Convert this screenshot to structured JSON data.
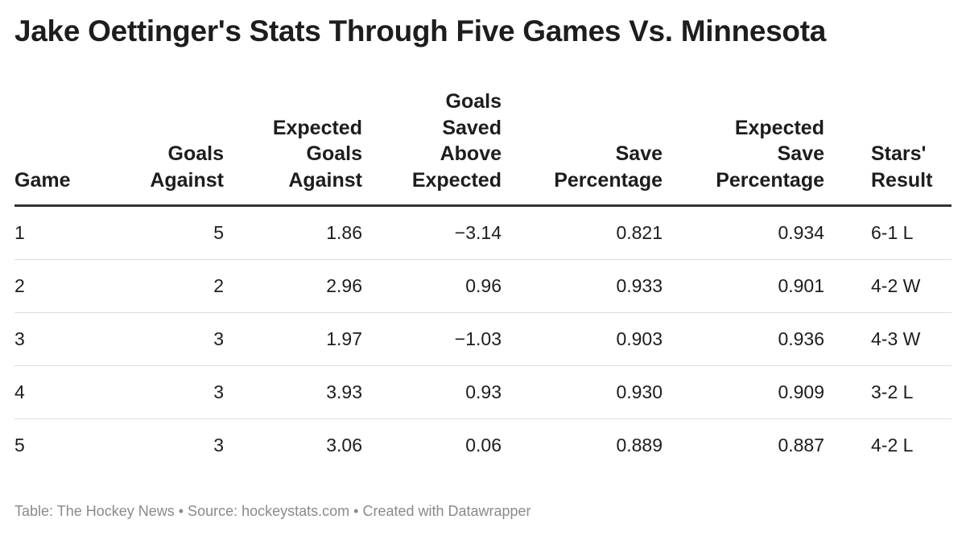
{
  "chart_data": {
    "type": "table",
    "title": "Jake Oettinger's Stats Through Five Games Vs. Minnesota",
    "columns": [
      {
        "key": "game",
        "lines": [
          "Game"
        ],
        "align": "left"
      },
      {
        "key": "goals_against",
        "lines": [
          "Goals",
          "Against"
        ],
        "align": "right"
      },
      {
        "key": "expected_goals_against",
        "lines": [
          "Expected",
          "Goals",
          "Against"
        ],
        "align": "right"
      },
      {
        "key": "gsax",
        "lines": [
          "Goals",
          "Saved",
          "Above",
          "Expected"
        ],
        "align": "right"
      },
      {
        "key": "save_pct",
        "lines": [
          "Save",
          "Percentage"
        ],
        "align": "right"
      },
      {
        "key": "expected_save_pct",
        "lines": [
          "Expected",
          "Save",
          "Percentage"
        ],
        "align": "right"
      },
      {
        "key": "result",
        "lines": [
          "Stars'",
          "Result"
        ],
        "align": "left"
      }
    ],
    "rows": [
      {
        "game": "1",
        "goals_against": "5",
        "expected_goals_against": "1.86",
        "gsax": "−3.14",
        "save_pct": "0.821",
        "expected_save_pct": "0.934",
        "result": "6-1 L"
      },
      {
        "game": "2",
        "goals_against": "2",
        "expected_goals_against": "2.96",
        "gsax": "0.96",
        "save_pct": "0.933",
        "expected_save_pct": "0.901",
        "result": "4-2 W"
      },
      {
        "game": "3",
        "goals_against": "3",
        "expected_goals_against": "1.97",
        "gsax": "−1.03",
        "save_pct": "0.903",
        "expected_save_pct": "0.936",
        "result": "4-3 W"
      },
      {
        "game": "4",
        "goals_against": "3",
        "expected_goals_against": "3.93",
        "gsax": "0.93",
        "save_pct": "0.930",
        "expected_save_pct": "0.909",
        "result": "3-2 L"
      },
      {
        "game": "5",
        "goals_against": "3",
        "expected_goals_against": "3.06",
        "gsax": "0.06",
        "save_pct": "0.889",
        "expected_save_pct": "0.887",
        "result": "4-2 L"
      }
    ]
  },
  "footer": "Table: The Hockey News • Source: hockeystats.com • Created with Datawrapper"
}
